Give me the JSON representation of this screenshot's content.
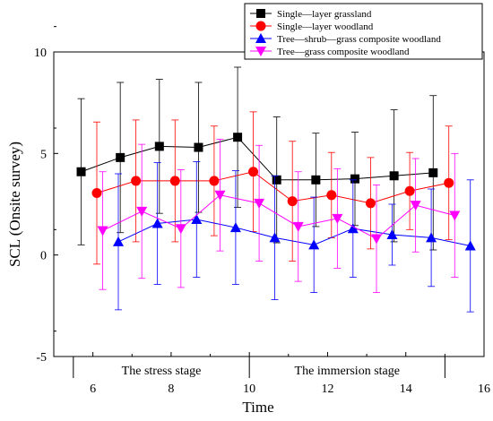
{
  "chart_data": {
    "type": "line",
    "xlabel": "Time",
    "ylabel": "SCL (Onsite survey)",
    "xlim": [
      5,
      16
    ],
    "ylim": [
      -5,
      10
    ],
    "xticks": [
      6,
      8,
      10,
      12,
      14,
      16
    ],
    "yticks": [
      -5,
      0,
      5,
      10
    ],
    "legend_position": "top-right",
    "stage_labels": [
      "The stress stage",
      "The immersion stage"
    ],
    "stage_divider_x": [
      10
    ],
    "series": [
      {
        "name": "Single—layer grassland",
        "color": "#000000",
        "marker": "square",
        "x": [
          5.7,
          6.7,
          7.7,
          8.7,
          9.7,
          10.7,
          11.7,
          12.7,
          13.7,
          14.7
        ],
        "y": [
          4.1,
          4.8,
          5.35,
          5.3,
          5.8,
          3.7,
          3.7,
          3.75,
          3.9,
          4.05
        ],
        "err": [
          3.6,
          3.7,
          3.3,
          3.2,
          3.45,
          3.1,
          2.3,
          2.3,
          3.25,
          3.8
        ]
      },
      {
        "name": "Single—layer woodland",
        "color": "#ff0000",
        "marker": "circle",
        "x": [
          6.1,
          7.1,
          8.1,
          9.1,
          10.1,
          11.1,
          12.1,
          13.1,
          14.1,
          15.1
        ],
        "y": [
          3.05,
          3.65,
          3.65,
          3.65,
          4.1,
          2.65,
          2.95,
          2.55,
          3.15,
          3.55
        ],
        "err": [
          3.5,
          3.0,
          3.0,
          2.7,
          2.95,
          2.95,
          2.1,
          2.25,
          1.9,
          2.8
        ]
      },
      {
        "name": "Tree—shrub—grass composite woodland",
        "color": "#0000ff",
        "marker": "triangle-up",
        "x": [
          6.65,
          7.65,
          8.65,
          9.65,
          10.65,
          11.65,
          12.65,
          13.65,
          14.65,
          15.65
        ],
        "y": [
          0.65,
          1.55,
          1.75,
          1.35,
          0.85,
          0.5,
          1.3,
          1.0,
          0.85,
          0.45
        ],
        "err": [
          3.35,
          3.0,
          2.85,
          2.8,
          3.05,
          2.35,
          2.4,
          1.5,
          2.4,
          3.25
        ]
      },
      {
        "name": "Tree—grass composite woodland",
        "color": "#ff00ff",
        "marker": "triangle-down",
        "x": [
          6.25,
          7.25,
          8.25,
          9.25,
          10.25,
          11.25,
          12.25,
          13.25,
          14.25,
          15.25
        ],
        "y": [
          1.2,
          2.15,
          1.3,
          2.95,
          2.55,
          1.4,
          1.8,
          0.8,
          2.45,
          1.95
        ],
        "err": [
          2.9,
          3.3,
          2.9,
          2.75,
          2.85,
          2.7,
          2.45,
          2.65,
          2.3,
          3.05
        ]
      }
    ]
  }
}
